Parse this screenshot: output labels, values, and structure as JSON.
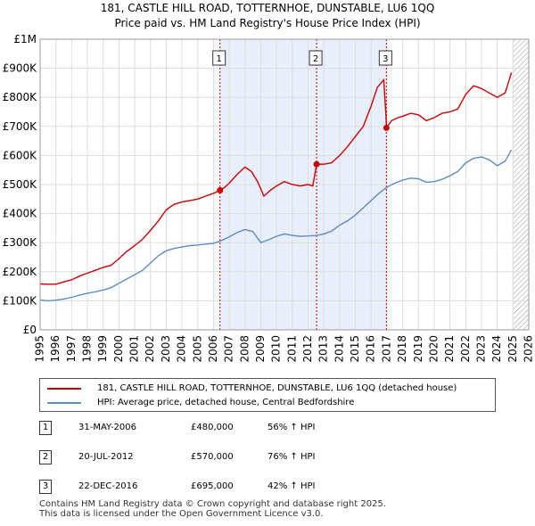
{
  "chart_data": {
    "type": "line",
    "title": "181, CASTLE HILL ROAD, TOTTERNHOE, DUNSTABLE, LU6 1QQ",
    "subtitle": "Price paid vs. HM Land Registry's House Price Index (HPI)",
    "xlabel": "",
    "ylabel": "",
    "xlim": [
      1995,
      2026
    ],
    "ylim": [
      0,
      1000000
    ],
    "x_ticks": [
      1995,
      1996,
      1997,
      1998,
      1999,
      2000,
      2001,
      2002,
      2003,
      2004,
      2005,
      2006,
      2007,
      2008,
      2009,
      2010,
      2011,
      2012,
      2013,
      2014,
      2015,
      2016,
      2017,
      2018,
      2019,
      2020,
      2021,
      2022,
      2023,
      2024,
      2025,
      2026
    ],
    "y_ticks": [
      {
        "value": 0,
        "label": "£0"
      },
      {
        "value": 100000,
        "label": "£100K"
      },
      {
        "value": 200000,
        "label": "£200K"
      },
      {
        "value": 300000,
        "label": "£300K"
      },
      {
        "value": 400000,
        "label": "£400K"
      },
      {
        "value": 500000,
        "label": "£500K"
      },
      {
        "value": 600000,
        "label": "£600K"
      },
      {
        "value": 700000,
        "label": "£700K"
      },
      {
        "value": 800000,
        "label": "£800K"
      },
      {
        "value": 900000,
        "label": "£900K"
      },
      {
        "value": 1000000,
        "label": "£1M"
      }
    ],
    "grid": true,
    "shaded_range": [
      2006.41,
      2016.97
    ],
    "future_hatch_from": 2025.0,
    "series": [
      {
        "name": "181, CASTLE HILL ROAD, TOTTERNHOE, DUNSTABLE, LU6 1QQ (detached house)",
        "color": "#cc0000",
        "points": [
          [
            1995.0,
            158000
          ],
          [
            1995.5,
            157000
          ],
          [
            1996.0,
            157000
          ],
          [
            1996.5,
            165000
          ],
          [
            1997.0,
            172000
          ],
          [
            1997.5,
            185000
          ],
          [
            1998.0,
            195000
          ],
          [
            1998.5,
            205000
          ],
          [
            1999.0,
            215000
          ],
          [
            1999.5,
            222000
          ],
          [
            2000.0,
            245000
          ],
          [
            2000.5,
            270000
          ],
          [
            2001.0,
            290000
          ],
          [
            2001.5,
            312000
          ],
          [
            2002.0,
            342000
          ],
          [
            2002.5,
            375000
          ],
          [
            2003.0,
            413000
          ],
          [
            2003.5,
            432000
          ],
          [
            2004.0,
            440000
          ],
          [
            2004.5,
            445000
          ],
          [
            2005.0,
            450000
          ],
          [
            2005.5,
            460000
          ],
          [
            2006.0,
            470000
          ],
          [
            2006.41,
            480000
          ],
          [
            2006.7,
            490000
          ],
          [
            2007.0,
            505000
          ],
          [
            2007.5,
            535000
          ],
          [
            2008.0,
            560000
          ],
          [
            2008.4,
            545000
          ],
          [
            2008.8,
            510000
          ],
          [
            2009.2,
            460000
          ],
          [
            2009.6,
            480000
          ],
          [
            2010.0,
            495000
          ],
          [
            2010.5,
            510000
          ],
          [
            2011.0,
            500000
          ],
          [
            2011.5,
            495000
          ],
          [
            2012.0,
            500000
          ],
          [
            2012.3,
            495000
          ],
          [
            2012.54,
            570000
          ],
          [
            2013.0,
            570000
          ],
          [
            2013.5,
            575000
          ],
          [
            2014.0,
            600000
          ],
          [
            2014.5,
            630000
          ],
          [
            2015.0,
            665000
          ],
          [
            2015.5,
            700000
          ],
          [
            2016.0,
            770000
          ],
          [
            2016.4,
            835000
          ],
          [
            2016.8,
            860000
          ],
          [
            2016.95,
            730000
          ],
          [
            2016.97,
            695000
          ],
          [
            2017.3,
            720000
          ],
          [
            2017.7,
            730000
          ],
          [
            2018.0,
            735000
          ],
          [
            2018.5,
            745000
          ],
          [
            2019.0,
            740000
          ],
          [
            2019.5,
            720000
          ],
          [
            2020.0,
            730000
          ],
          [
            2020.5,
            745000
          ],
          [
            2021.0,
            750000
          ],
          [
            2021.5,
            760000
          ],
          [
            2022.0,
            810000
          ],
          [
            2022.5,
            840000
          ],
          [
            2023.0,
            830000
          ],
          [
            2023.5,
            815000
          ],
          [
            2024.0,
            800000
          ],
          [
            2024.5,
            815000
          ],
          [
            2024.9,
            885000
          ]
        ]
      },
      {
        "name": "HPI: Average price, detached house, Central Bedfordshire",
        "color": "#5b8cc8",
        "points": [
          [
            1995.0,
            103000
          ],
          [
            1995.5,
            100000
          ],
          [
            1996.0,
            102000
          ],
          [
            1996.5,
            106000
          ],
          [
            1997.0,
            112000
          ],
          [
            1997.5,
            120000
          ],
          [
            1998.0,
            126000
          ],
          [
            1998.5,
            131000
          ],
          [
            1999.0,
            137000
          ],
          [
            1999.5,
            145000
          ],
          [
            2000.0,
            160000
          ],
          [
            2000.5,
            175000
          ],
          [
            2001.0,
            190000
          ],
          [
            2001.5,
            205000
          ],
          [
            2002.0,
            230000
          ],
          [
            2002.5,
            255000
          ],
          [
            2003.0,
            272000
          ],
          [
            2003.5,
            280000
          ],
          [
            2004.0,
            285000
          ],
          [
            2004.5,
            290000
          ],
          [
            2005.0,
            292000
          ],
          [
            2005.5,
            295000
          ],
          [
            2006.0,
            298000
          ],
          [
            2006.41,
            305000
          ],
          [
            2007.0,
            320000
          ],
          [
            2007.5,
            335000
          ],
          [
            2008.0,
            345000
          ],
          [
            2008.5,
            338000
          ],
          [
            2009.0,
            300000
          ],
          [
            2009.5,
            310000
          ],
          [
            2010.0,
            322000
          ],
          [
            2010.5,
            330000
          ],
          [
            2011.0,
            325000
          ],
          [
            2011.5,
            322000
          ],
          [
            2012.0,
            323000
          ],
          [
            2012.54,
            325000
          ],
          [
            2013.0,
            330000
          ],
          [
            2013.5,
            340000
          ],
          [
            2014.0,
            360000
          ],
          [
            2014.5,
            375000
          ],
          [
            2015.0,
            395000
          ],
          [
            2015.5,
            420000
          ],
          [
            2016.0,
            445000
          ],
          [
            2016.5,
            470000
          ],
          [
            2016.97,
            490000
          ],
          [
            2017.5,
            505000
          ],
          [
            2018.0,
            515000
          ],
          [
            2018.5,
            522000
          ],
          [
            2019.0,
            520000
          ],
          [
            2019.5,
            508000
          ],
          [
            2020.0,
            510000
          ],
          [
            2020.5,
            518000
          ],
          [
            2021.0,
            530000
          ],
          [
            2021.5,
            545000
          ],
          [
            2022.0,
            575000
          ],
          [
            2022.5,
            590000
          ],
          [
            2023.0,
            595000
          ],
          [
            2023.5,
            585000
          ],
          [
            2024.0,
            565000
          ],
          [
            2024.5,
            580000
          ],
          [
            2024.9,
            620000
          ]
        ]
      }
    ],
    "sales": [
      {
        "label": "1",
        "x": 2006.41,
        "y": 480000
      },
      {
        "label": "2",
        "x": 2012.54,
        "y": 570000
      },
      {
        "label": "3",
        "x": 2016.97,
        "y": 695000
      }
    ]
  },
  "legend": {
    "items": [
      {
        "label": "181, CASTLE HILL ROAD, TOTTERNHOE, DUNSTABLE, LU6 1QQ (detached house)",
        "color": "#cc0000"
      },
      {
        "label": "HPI: Average price, detached house, Central Bedfordshire",
        "color": "#5b8cc8"
      }
    ]
  },
  "transactions": [
    {
      "marker": "1",
      "date": "31-MAY-2006",
      "price": "£480,000",
      "hpi": "56% ↑ HPI"
    },
    {
      "marker": "2",
      "date": "20-JUL-2012",
      "price": "£570,000",
      "hpi": "76% ↑ HPI"
    },
    {
      "marker": "3",
      "date": "22-DEC-2016",
      "price": "£695,000",
      "hpi": "42% ↑ HPI"
    }
  ],
  "footer": {
    "line1": "Contains HM Land Registry data © Crown copyright and database right 2025.",
    "line2": "This data is licensed under the Open Government Licence v3.0."
  }
}
